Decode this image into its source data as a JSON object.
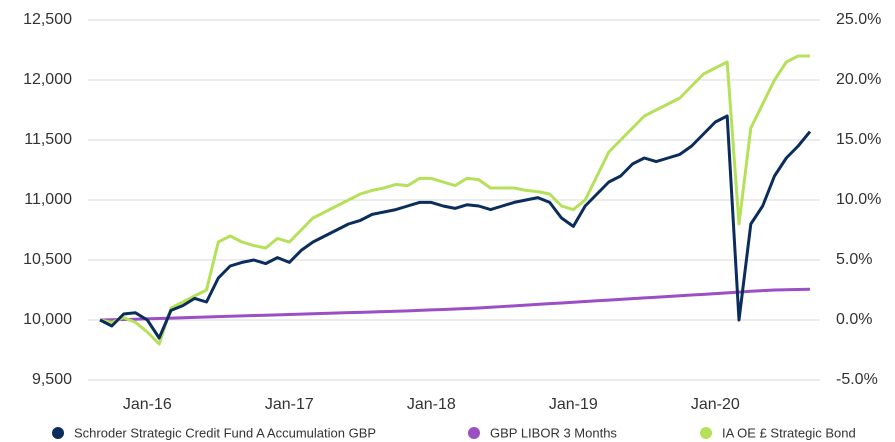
{
  "chart_data": {
    "type": "line",
    "x": [
      "Sep-15",
      "Oct-15",
      "Nov-15",
      "Dec-15",
      "Jan-16",
      "Feb-16",
      "Mar-16",
      "Apr-16",
      "May-16",
      "Jun-16",
      "Jul-16",
      "Aug-16",
      "Sep-16",
      "Oct-16",
      "Nov-16",
      "Dec-16",
      "Jan-17",
      "Feb-17",
      "Mar-17",
      "Apr-17",
      "May-17",
      "Jun-17",
      "Jul-17",
      "Aug-17",
      "Sep-17",
      "Oct-17",
      "Nov-17",
      "Dec-17",
      "Jan-18",
      "Feb-18",
      "Mar-18",
      "Apr-18",
      "May-18",
      "Jun-18",
      "Jul-18",
      "Aug-18",
      "Sep-18",
      "Oct-18",
      "Nov-18",
      "Dec-18",
      "Jan-19",
      "Feb-19",
      "Mar-19",
      "Apr-19",
      "May-19",
      "Jun-19",
      "Jul-19",
      "Aug-19",
      "Sep-19",
      "Oct-19",
      "Nov-19",
      "Dec-19",
      "Jan-20",
      "Feb-20",
      "Mar-20",
      "Apr-20",
      "May-20",
      "Jun-20",
      "Jul-20",
      "Aug-20",
      "Sep-20"
    ],
    "xticks": [
      "Jan-16",
      "Jan-17",
      "Jan-18",
      "Jan-19",
      "Jan-20"
    ],
    "series": [
      {
        "name": "Schroder Strategic Credit Fund A Accumulation GBP",
        "color": "#0b2d5b",
        "values": [
          10000,
          9950,
          10050,
          10060,
          10000,
          9850,
          10080,
          10120,
          10180,
          10150,
          10350,
          10450,
          10480,
          10500,
          10470,
          10520,
          10480,
          10580,
          10650,
          10700,
          10750,
          10800,
          10830,
          10880,
          10900,
          10920,
          10950,
          10980,
          10980,
          10950,
          10930,
          10960,
          10950,
          10920,
          10950,
          10980,
          11000,
          11020,
          10980,
          10850,
          10780,
          10950,
          11050,
          11150,
          11200,
          11300,
          11350,
          11320,
          11350,
          11380,
          11450,
          11550,
          11650,
          11700,
          10000,
          10800,
          10950,
          11200,
          11350,
          11450,
          11570
        ]
      },
      {
        "name": "GBP LIBOR 3 Months",
        "color": "#9b4fc4",
        "values": [
          10000,
          10002,
          10004,
          10006,
          10010,
          10013,
          10016,
          10019,
          10022,
          10025,
          10028,
          10031,
          10034,
          10037,
          10040,
          10043,
          10046,
          10049,
          10052,
          10055,
          10058,
          10061,
          10064,
          10067,
          10070,
          10073,
          10076,
          10080,
          10084,
          10088,
          10092,
          10096,
          10100,
          10106,
          10112,
          10118,
          10124,
          10130,
          10136,
          10142,
          10148,
          10154,
          10160,
          10166,
          10172,
          10178,
          10184,
          10190,
          10196,
          10202,
          10208,
          10214,
          10220,
          10226,
          10232,
          10240,
          10245,
          10250,
          10252,
          10254,
          10256
        ]
      },
      {
        "name": "IA OE £ Strategic Bond",
        "color": "#b5e05a",
        "values": [
          10000,
          9980,
          10020,
          9980,
          9900,
          9800,
          10100,
          10150,
          10200,
          10250,
          10650,
          10700,
          10650,
          10620,
          10600,
          10680,
          10650,
          10750,
          10850,
          10900,
          10950,
          11000,
          11050,
          11080,
          11100,
          11130,
          11120,
          11180,
          11180,
          11150,
          11120,
          11180,
          11170,
          11100,
          11100,
          11100,
          11080,
          11070,
          11050,
          10950,
          10920,
          11000,
          11200,
          11400,
          11500,
          11600,
          11700,
          11750,
          11800,
          11850,
          11950,
          12050,
          12100,
          12150,
          10800,
          11600,
          11800,
          12000,
          12150,
          12200,
          12200
        ]
      }
    ],
    "ylim": [
      9500,
      12500
    ],
    "yticks": [
      {
        "value": 9500,
        "label": "9,500"
      },
      {
        "value": 10000,
        "label": "10,000"
      },
      {
        "value": 10500,
        "label": "10,500"
      },
      {
        "value": 11000,
        "label": "11,000"
      },
      {
        "value": 11500,
        "label": "11,500"
      },
      {
        "value": 12000,
        "label": "12,000"
      },
      {
        "value": 12500,
        "label": "12,500"
      }
    ],
    "y2lim": [
      -5,
      25
    ],
    "y2ticks": [
      {
        "value": -5,
        "label": "-5.0%"
      },
      {
        "value": 0,
        "label": "0.0%"
      },
      {
        "value": 5,
        "label": "5.0%"
      },
      {
        "value": 10,
        "label": "10.0%"
      },
      {
        "value": 15,
        "label": "15.0%"
      },
      {
        "value": 20,
        "label": "20.0%"
      },
      {
        "value": 25,
        "label": "25.0%"
      }
    ],
    "grid": true,
    "legend": "bottom"
  }
}
